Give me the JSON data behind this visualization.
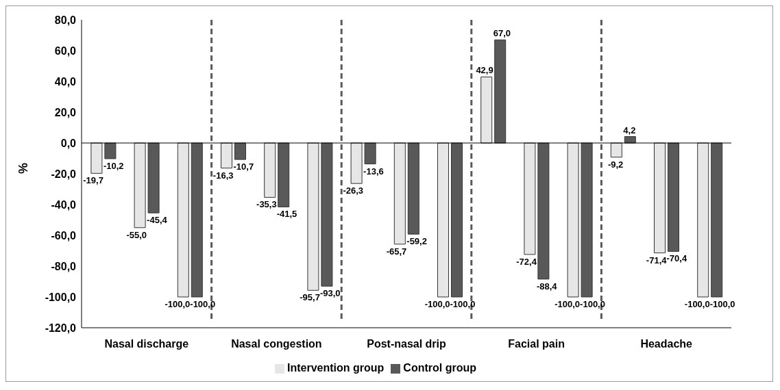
{
  "chart_data": {
    "type": "bar",
    "ylabel": "%",
    "categories": [
      null,
      "Nasal discharge",
      null,
      null,
      "Nasal congestion",
      null,
      null,
      "Post-nasal drip",
      null,
      null,
      "Facial pain",
      null,
      null,
      "Headache",
      null
    ],
    "series": [
      {
        "name": "Intervention group",
        "color": "#e6e6e6",
        "values": [
          -19.7,
          -55.0,
          -100.0,
          -16.3,
          -35.3,
          -95.7,
          -26.3,
          -65.7,
          -100.0,
          42.9,
          -72.4,
          -100.0,
          -9.2,
          -71.4,
          -100.0
        ],
        "value_labels": [
          "-19,7",
          "-55,0",
          "-100,0",
          "-16,3",
          "-35,3",
          "-95,7",
          "-26,3",
          "-65,7",
          "-100,0",
          "42,9",
          "-72,4",
          "-100,0",
          "-9,2",
          "-71,4",
          "-100,0"
        ]
      },
      {
        "name": "Control group",
        "color": "#595959",
        "values": [
          -10.2,
          -45.4,
          -100.0,
          -10.7,
          -41.5,
          -93.0,
          -13.6,
          -59.2,
          -100.0,
          67.0,
          -88.4,
          -100.0,
          4.2,
          -70.4,
          -100.0
        ],
        "value_labels": [
          "-10,2",
          "-45,4",
          "-100,0",
          "-10,7",
          "-41,5",
          "-93,0",
          "-13,6",
          "-59,2",
          "-100,0",
          "67,0",
          "-88,4",
          "-100,0",
          "4,2",
          "-70,4",
          "-100,0"
        ]
      }
    ],
    "ylim": [
      -120,
      80
    ],
    "yticks": [
      {
        "value": -120,
        "label": "-120,0"
      },
      {
        "value": -100,
        "label": "-100,0"
      },
      {
        "value": -80,
        "label": "-80,0"
      },
      {
        "value": -60,
        "label": "-60,0"
      },
      {
        "value": -40,
        "label": "-40,0"
      },
      {
        "value": -20,
        "label": "-20,0"
      },
      {
        "value": 0,
        "label": "0,0"
      },
      {
        "value": 20,
        "label": "20,0"
      },
      {
        "value": 40,
        "label": "40,0"
      },
      {
        "value": 60,
        "label": "60,0"
      },
      {
        "value": 80,
        "label": "80,0"
      }
    ],
    "grid": false,
    "legend": "bottom"
  }
}
